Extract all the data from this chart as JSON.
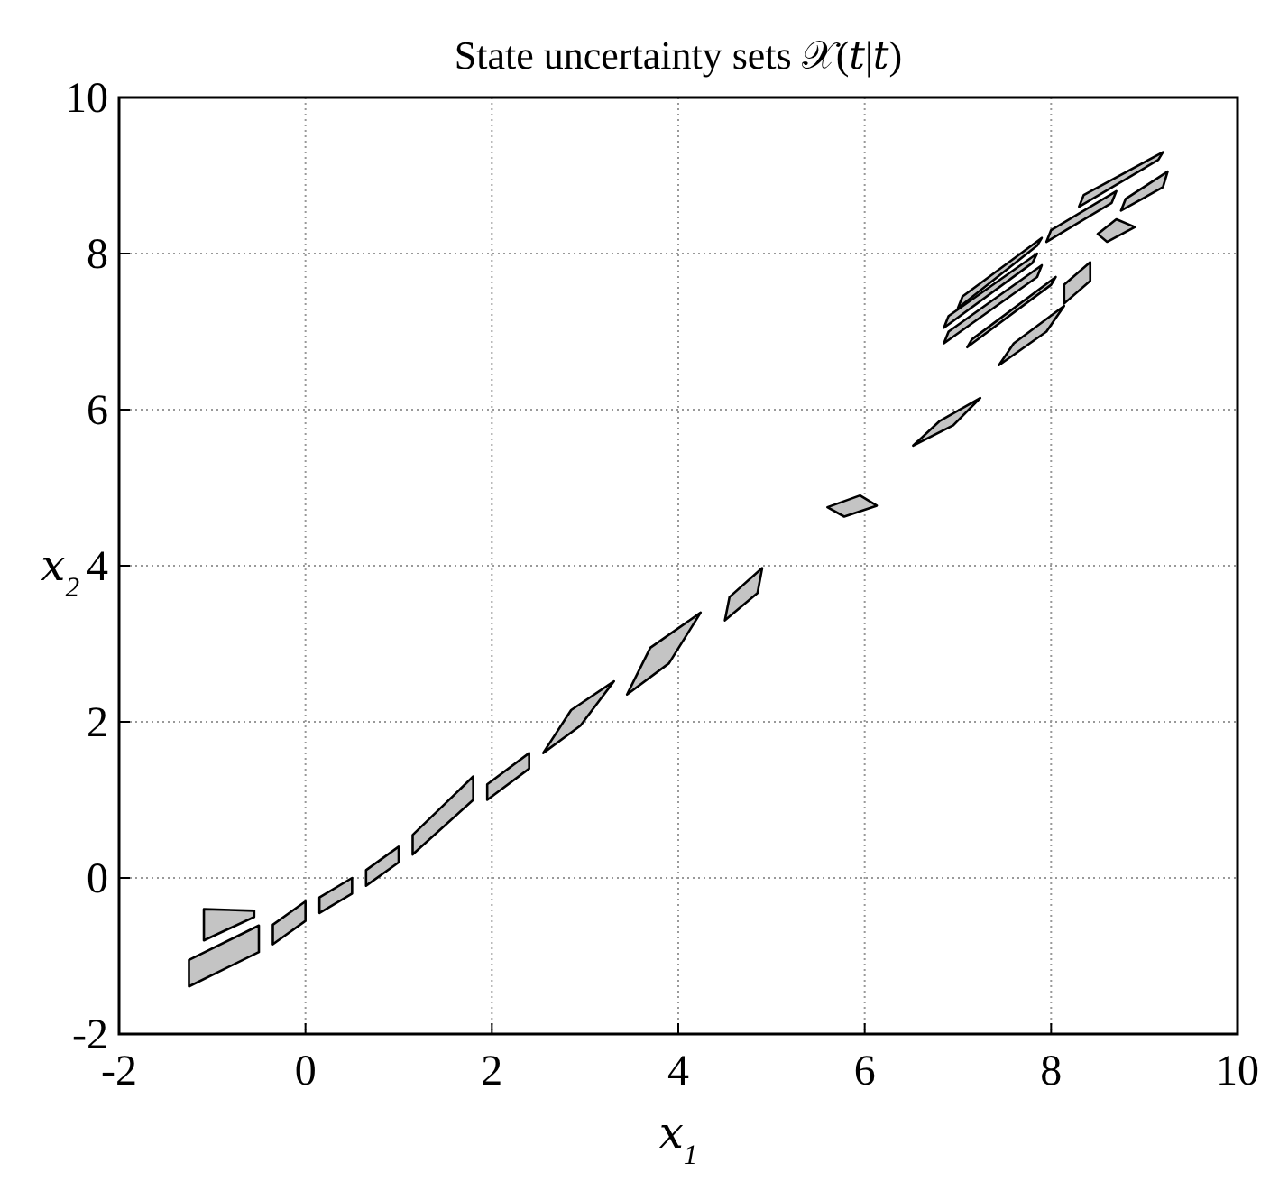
{
  "chart_data": {
    "type": "area",
    "title": "State uncertainty sets 𝒳(𝑡|𝑡)",
    "xlabel": "𝑥$_{1}$",
    "ylabel": "𝑥$_{2}$",
    "xlim": [
      -2,
      10
    ],
    "ylim": [
      -2,
      10
    ],
    "xticks": [
      -2,
      0,
      2,
      4,
      6,
      8,
      10
    ],
    "yticks": [
      -2,
      0,
      2,
      4,
      6,
      8,
      10
    ],
    "grid": true,
    "series": [
      {
        "color": "#c4c4c4",
        "x": [
          -1.25,
          -1.25,
          -0.5,
          -0.5,
          -1.25
        ],
        "values": [
          -1.39,
          -1.05,
          -0.61,
          -0.95,
          -1.39
        ]
      },
      {
        "color": "#c4c4c4",
        "x": [
          -1.09,
          -0.55,
          -0.55,
          -1.09,
          -1.09
        ],
        "values": [
          -0.4,
          -0.42,
          -0.5,
          -0.8,
          -0.4
        ]
      },
      {
        "color": "#c4c4c4",
        "x": [
          -0.35,
          -0.35,
          0.0,
          0.0,
          -0.35
        ],
        "values": [
          -0.85,
          -0.6,
          -0.3,
          -0.55,
          -0.85
        ]
      },
      {
        "color": "#c4c4c4",
        "x": [
          0.15,
          0.15,
          0.5,
          0.5,
          0.15
        ],
        "values": [
          -0.45,
          -0.25,
          0.0,
          -0.2,
          -0.45
        ]
      },
      {
        "color": "#c4c4c4",
        "x": [
          0.65,
          0.65,
          1.0,
          1.0,
          0.65
        ],
        "values": [
          -0.1,
          0.1,
          0.4,
          0.2,
          -0.1
        ]
      },
      {
        "color": "#c4c4c4",
        "x": [
          1.15,
          1.15,
          1.8,
          1.8,
          1.15
        ],
        "values": [
          0.3,
          0.55,
          1.3,
          1.0,
          0.3
        ]
      },
      {
        "color": "#c4c4c4",
        "x": [
          1.95,
          1.95,
          2.4,
          2.4,
          1.95
        ],
        "values": [
          1.0,
          1.2,
          1.6,
          1.4,
          1.0
        ]
      },
      {
        "color": "#c4c4c4",
        "x": [
          2.55,
          2.85,
          3.31,
          2.95,
          2.55
        ],
        "values": [
          1.6,
          2.15,
          2.52,
          1.95,
          1.6
        ]
      },
      {
        "color": "#c4c4c4",
        "x": [
          3.45,
          3.7,
          4.24,
          3.9,
          3.45
        ],
        "values": [
          2.35,
          2.95,
          3.4,
          2.75,
          2.35
        ]
      },
      {
        "color": "#c4c4c4",
        "x": [
          4.5,
          4.55,
          4.9,
          4.85,
          4.5
        ],
        "values": [
          3.3,
          3.6,
          3.97,
          3.65,
          3.3
        ]
      },
      {
        "color": "#c4c4c4",
        "x": [
          5.6,
          5.95,
          6.13,
          5.78,
          5.6
        ],
        "values": [
          4.75,
          4.9,
          4.77,
          4.63,
          4.75
        ]
      },
      {
        "color": "#c4c4c4",
        "x": [
          6.52,
          6.8,
          7.24,
          6.95,
          6.52
        ],
        "values": [
          5.54,
          5.85,
          6.15,
          5.8,
          5.54
        ]
      },
      {
        "color": "#c4c4c4",
        "x": [
          7.44,
          7.6,
          8.14,
          7.95,
          7.44
        ],
        "values": [
          6.57,
          6.85,
          7.33,
          7.0,
          6.57
        ]
      },
      {
        "color": "#c4c4c4",
        "x": [
          8.14,
          8.14,
          8.42,
          8.42,
          8.14
        ],
        "values": [
          7.36,
          7.6,
          7.89,
          7.65,
          7.36
        ]
      },
      {
        "color": "#c4c4c4",
        "x": [
          8.5,
          8.7,
          8.9,
          8.6,
          8.5
        ],
        "values": [
          8.25,
          8.44,
          8.34,
          8.15,
          8.25
        ]
      },
      {
        "color": "#c4c4c4",
        "x": [
          6.85,
          6.9,
          7.9,
          7.85,
          6.85
        ],
        "values": [
          6.85,
          7.0,
          7.85,
          7.7,
          6.85
        ]
      },
      {
        "color": "#c4c4c4",
        "x": [
          6.85,
          6.9,
          7.85,
          7.8,
          6.85
        ],
        "values": [
          7.05,
          7.2,
          8.0,
          7.88,
          7.05
        ]
      },
      {
        "color": "#c4c4c4",
        "x": [
          7.0,
          7.05,
          7.9,
          7.85,
          7.0
        ],
        "values": [
          7.3,
          7.45,
          8.2,
          8.1,
          7.3
        ]
      },
      {
        "color": "#c4c4c4",
        "x": [
          7.1,
          7.15,
          8.05,
          8.0,
          7.1
        ],
        "values": [
          6.8,
          6.9,
          7.7,
          7.6,
          6.8
        ]
      },
      {
        "color": "#c4c4c4",
        "x": [
          7.95,
          8.0,
          8.7,
          8.65,
          7.95
        ],
        "values": [
          8.15,
          8.3,
          8.8,
          8.65,
          8.15
        ]
      },
      {
        "color": "#c4c4c4",
        "x": [
          8.3,
          8.35,
          9.2,
          9.15,
          8.3
        ],
        "values": [
          8.6,
          8.75,
          9.3,
          9.2,
          8.6
        ]
      },
      {
        "color": "#c4c4c4",
        "x": [
          8.75,
          8.8,
          9.25,
          9.2,
          8.75
        ],
        "values": [
          8.55,
          8.7,
          9.05,
          8.85,
          8.55
        ]
      }
    ]
  }
}
